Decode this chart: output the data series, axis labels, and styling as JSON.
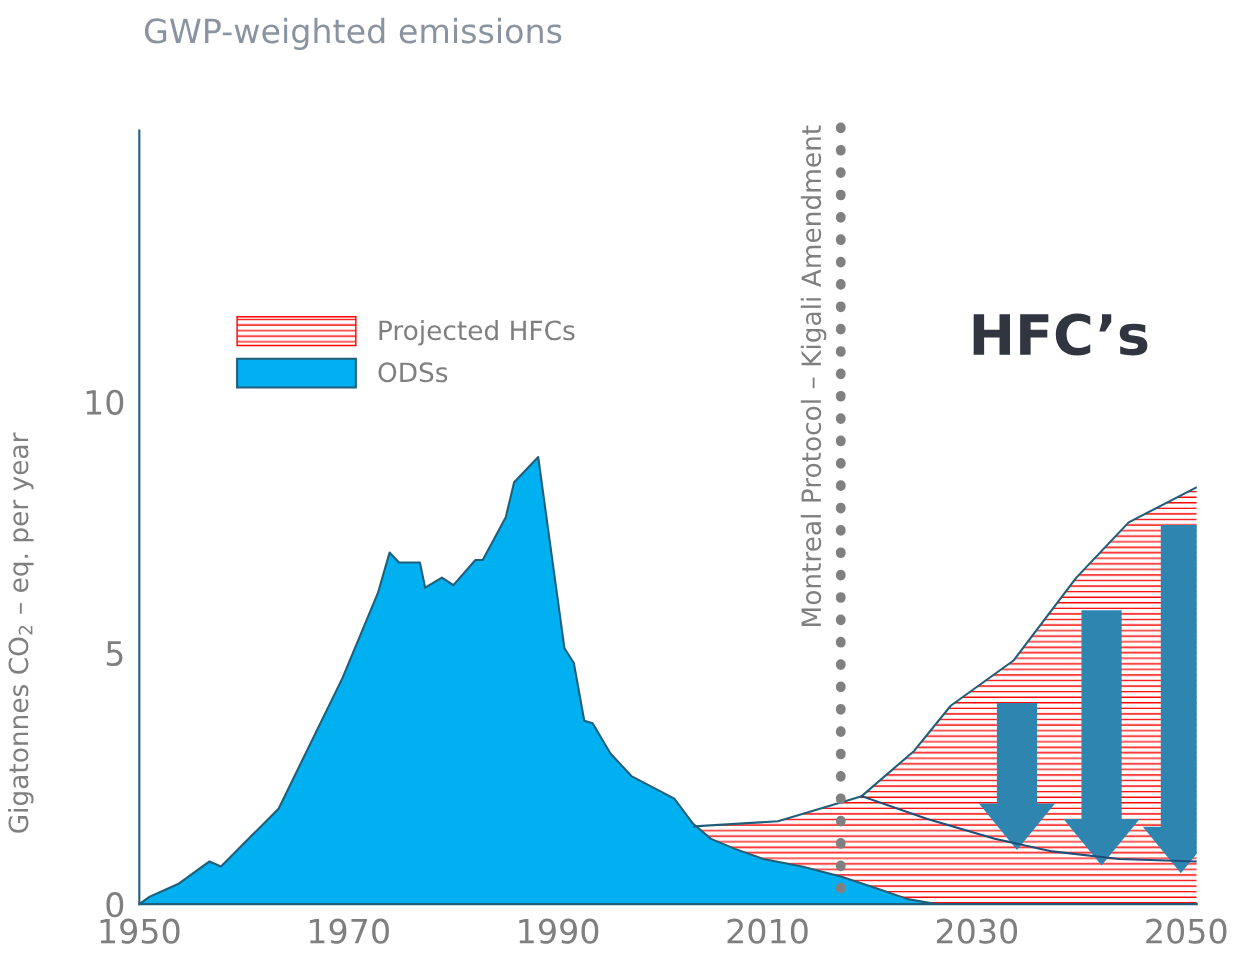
{
  "chart_data": {
    "type": "area",
    "title": "GWP-weighted emissions",
    "ylabel": "Gigatonnes CO$_{2}$ – eq. per year",
    "xlim": [
      1950,
      2051
    ],
    "ylim": [
      0,
      15.4
    ],
    "xticks": [
      1950,
      1970,
      1990,
      2010,
      2030,
      2050
    ],
    "yticks": [
      0,
      5,
      10
    ],
    "grid": false,
    "legend": "upper left",
    "series": [
      {
        "name": "Projected HFCs",
        "color": "#ff0000",
        "x": [
          2003,
          2011,
          2019,
          2024,
          2027.5,
          2033.5,
          2039.5,
          2044.5,
          2051
        ],
        "values": [
          1.55,
          1.65,
          2.15,
          3.05,
          3.95,
          4.85,
          6.5,
          7.6,
          8.3
        ]
      },
      {
        "name": "ODSs",
        "color": "#00b0f0",
        "x": [
          1950,
          1951,
          1953.7,
          1956.7,
          1957.8,
          1963.3,
          1969.4,
          1972.8,
          1973.9,
          1974.8,
          1976.8,
          1977.3,
          1978.9,
          1980,
          1982.1,
          1982.8,
          1985,
          1985.8,
          1988.1,
          1990.6,
          1991.5,
          1992.5,
          1993.3,
          1995,
          1997,
          2001.1,
          2002.9,
          2004.6,
          2006.9,
          2009.6,
          2013.3,
          2017,
          2020.6,
          2023.4,
          2026.1
        ],
        "values": [
          0,
          0.15,
          0.4,
          0.85,
          0.75,
          1.9,
          4.5,
          6.2,
          7.0,
          6.8,
          6.8,
          6.3,
          6.5,
          6.35,
          6.85,
          6.85,
          7.7,
          8.4,
          8.9,
          5.1,
          4.8,
          3.65,
          3.6,
          3.0,
          2.55,
          2.1,
          1.6,
          1.3,
          1.1,
          0.9,
          0.75,
          0.55,
          0.3,
          0.1,
          0
        ]
      },
      {
        "type": "line",
        "color": "#1f4e79",
        "x": [
          2019,
          2025.2,
          2031.7,
          2037.2,
          2043.6,
          2051
        ],
        "values": [
          2.15,
          1.7,
          1.3,
          1.05,
          0.9,
          0.85
        ]
      }
    ],
    "ref_lines": [
      {
        "axis": "x",
        "value": 2017,
        "label": "Montreal Protocol – Kigali Amendment",
        "color": "#808080",
        "line_style": "dotted"
      }
    ],
    "annotations": [
      "HFC’s"
    ]
  }
}
